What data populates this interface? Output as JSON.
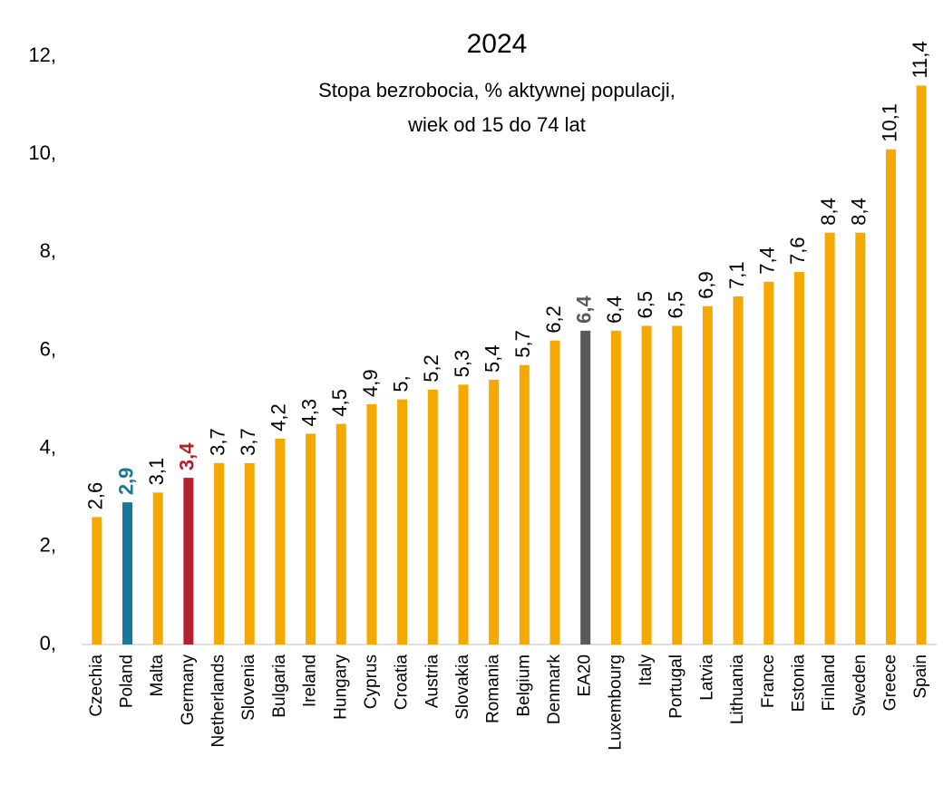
{
  "chart_data": {
    "type": "bar",
    "title": "2024",
    "subtitle": [
      "Stopa bezrobocia, % aktywnej populacji,",
      "wiek od 15 do 74 lat"
    ],
    "categories": [
      "Czechia",
      "Poland",
      "Malta",
      "Germany",
      "Netherlands",
      "Slovenia",
      "Bulgaria",
      "Ireland",
      "Hungary",
      "Cyprus",
      "Croatia",
      "Austria",
      "Slovakia",
      "Romania",
      "Belgium",
      "Denmark",
      "EA20",
      "Luxembourg",
      "Italy",
      "Portugal",
      "Latvia",
      "Lithuania",
      "France",
      "Estonia",
      "Finland",
      "Sweden",
      "Greece",
      "Spain"
    ],
    "values": [
      2.6,
      2.9,
      3.1,
      3.4,
      3.7,
      3.7,
      4.2,
      4.3,
      4.5,
      4.9,
      5,
      5.2,
      5.3,
      5.4,
      5.7,
      6.2,
      6.4,
      6.4,
      6.5,
      6.5,
      6.9,
      7.1,
      7.4,
      7.6,
      8.4,
      8.4,
      10.1,
      11.4
    ],
    "value_labels": [
      "2,6",
      "2,9",
      "3,1",
      "3,4",
      "3,7",
      "3,7",
      "4,2",
      "4,3",
      "4,5",
      "4,9",
      "5,",
      "5,2",
      "5,3",
      "5,4",
      "5,7",
      "6,2",
      "6,4",
      "6,4",
      "6,5",
      "6,5",
      "6,9",
      "7,1",
      "7,4",
      "7,6",
      "8,4",
      "8,4",
      "10,1",
      "11,4"
    ],
    "color": "#f5a800",
    "colors": [
      "#f5a800",
      "#16799a",
      "#f5a800",
      "#b3202f",
      "#f5a800",
      "#f5a800",
      "#f5a800",
      "#f5a800",
      "#f5a800",
      "#f5a800",
      "#f5a800",
      "#f5a800",
      "#f5a800",
      "#f5a800",
      "#f5a800",
      "#f5a800",
      "#595959",
      "#f5a800",
      "#f5a800",
      "#f5a800",
      "#f5a800",
      "#f5a800",
      "#f5a800",
      "#f5a800",
      "#f5a800",
      "#f5a800",
      "#f5a800",
      "#f5a800"
    ],
    "ylim": [
      0,
      12
    ],
    "yticks": [
      {
        "value": 0,
        "label": "0,"
      },
      {
        "value": 2,
        "label": "2,"
      },
      {
        "value": 4,
        "label": "4,"
      },
      {
        "value": 6,
        "label": "6,"
      },
      {
        "value": 8,
        "label": "8,"
      },
      {
        "value": 10,
        "label": "10,"
      },
      {
        "value": 12,
        "label": "12,"
      }
    ],
    "grid": false
  }
}
